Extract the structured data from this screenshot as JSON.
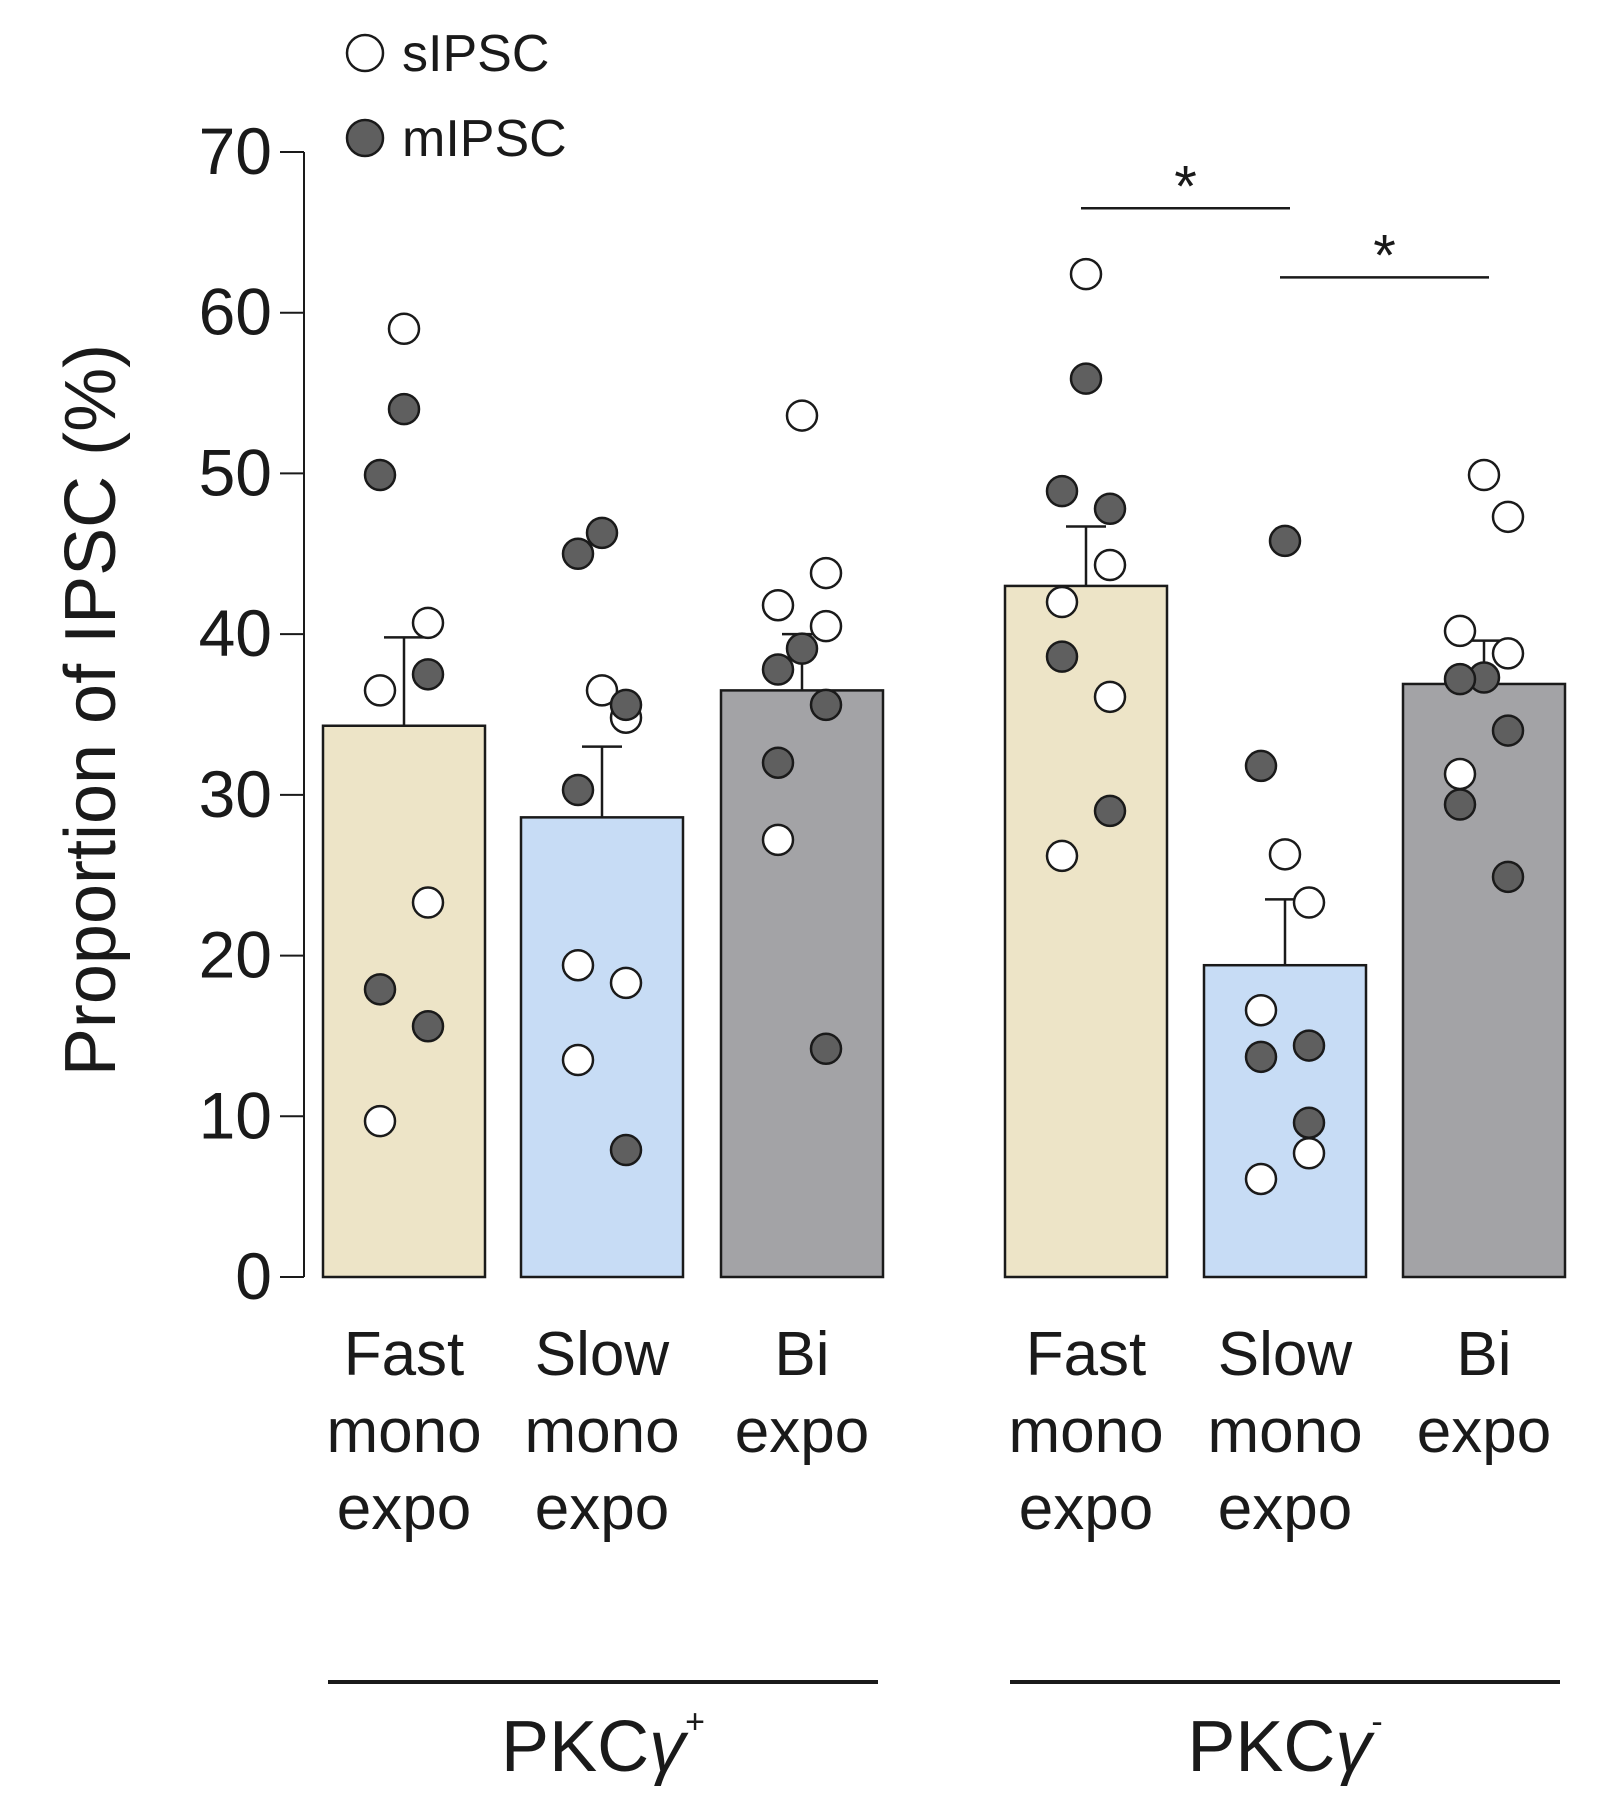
{
  "chart_data": {
    "type": "bar",
    "ylabel": "Proportion of IPSC (%)",
    "ylim": [
      0,
      70
    ],
    "yticks": [
      "0",
      "10",
      "20",
      "30",
      "40",
      "50",
      "60",
      "70"
    ],
    "grid": false,
    "legend": {
      "position": "top-left",
      "entries": [
        {
          "label": "sIPSC",
          "fill": "#ffffff"
        },
        {
          "label": "mIPSC",
          "fill": "#5f5f5f"
        }
      ]
    },
    "colors": {
      "fast": "#ede4c7",
      "slow": "#c7dcf5",
      "bi": "#a3a3a6",
      "sIPSC": "#ffffff",
      "mIPSC": "#5f5f5f",
      "ink": "#1a1a1a"
    },
    "groups": [
      {
        "base": "PKC",
        "gamma": "γ",
        "sign": "+",
        "bars": [
          {
            "label": [
              "Fast",
              "mono",
              "expo"
            ],
            "color_key": "fast",
            "mean": 34.3,
            "sem": 5.5,
            "sIPSC": [
              59.0,
              40.7,
              36.5,
              23.3,
              9.7
            ],
            "mIPSC": [
              54.0,
              49.9,
              37.5,
              17.9,
              15.6
            ]
          },
          {
            "label": [
              "Slow",
              "mono",
              "expo"
            ],
            "color_key": "slow",
            "mean": 28.6,
            "sem": 4.4,
            "sIPSC": [
              36.5,
              34.8,
              19.4,
              18.3,
              13.5
            ],
            "mIPSC": [
              46.3,
              45.0,
              35.6,
              30.3,
              7.9
            ]
          },
          {
            "label": [
              "Bi",
              "expo"
            ],
            "color_key": "bi",
            "mean": 36.5,
            "sem": 3.5,
            "sIPSC": [
              53.6,
              43.8,
              41.8,
              40.5,
              27.2
            ],
            "mIPSC": [
              39.1,
              37.8,
              35.6,
              32.0,
              14.2
            ]
          }
        ]
      },
      {
        "base": "PKC",
        "gamma": "γ",
        "sign": "-",
        "bars": [
          {
            "label": [
              "Fast",
              "mono",
              "expo"
            ],
            "color_key": "fast",
            "mean": 43.0,
            "sem": 3.7,
            "sIPSC": [
              62.4,
              44.3,
              42.0,
              36.1,
              26.2
            ],
            "mIPSC": [
              55.9,
              48.9,
              47.8,
              38.6,
              29.0
            ]
          },
          {
            "label": [
              "Slow",
              "mono",
              "expo"
            ],
            "color_key": "slow",
            "mean": 19.4,
            "sem": 4.1,
            "sIPSC": [
              26.3,
              23.3,
              16.6,
              7.7,
              6.1
            ],
            "mIPSC": [
              45.8,
              31.8,
              14.4,
              13.7,
              9.6
            ]
          },
          {
            "label": [
              "Bi",
              "expo"
            ],
            "color_key": "bi",
            "mean": 36.9,
            "sem": 2.7,
            "sIPSC": [
              49.9,
              47.3,
              40.2,
              38.8,
              31.3
            ],
            "mIPSC": [
              37.3,
              37.2,
              34.0,
              29.4,
              24.9
            ]
          }
        ]
      }
    ],
    "significance": [
      {
        "group": 1,
        "from": 0,
        "to": 1,
        "level": 66.5,
        "label": "*"
      },
      {
        "group": 1,
        "from": 1,
        "to": 2,
        "level": 62.2,
        "label": "*"
      }
    ]
  }
}
